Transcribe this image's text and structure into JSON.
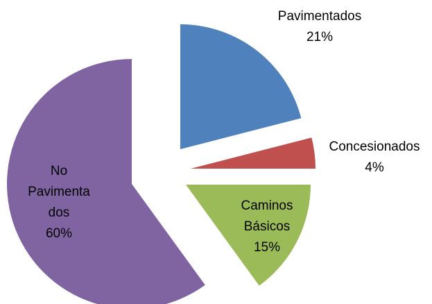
{
  "chart_data": {
    "type": "pie",
    "categories": [
      "Pavimentados",
      "Concesionados",
      "Caminos Básicos",
      "No Pavimentados"
    ],
    "values": [
      21,
      4,
      15,
      60
    ],
    "value_labels": [
      "21%",
      "4%",
      "15%",
      "60%"
    ],
    "colors": [
      "#4f81bd",
      "#c0504d",
      "#9bbb59",
      "#8064a2"
    ]
  }
}
